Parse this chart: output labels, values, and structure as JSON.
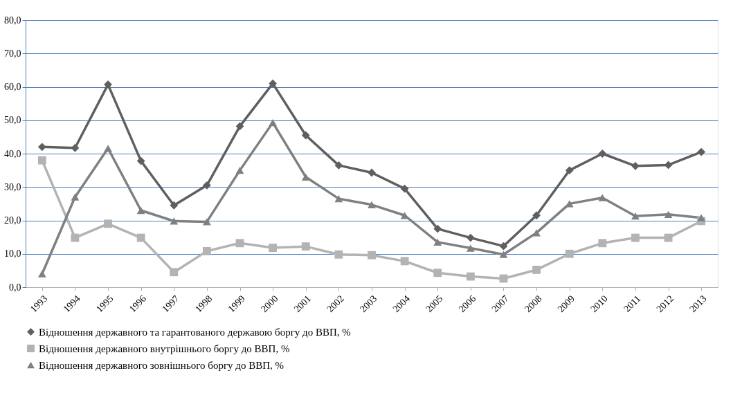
{
  "chart_data": {
    "type": "line",
    "categories": [
      "1993",
      "1994",
      "1995",
      "1996",
      "1997",
      "1998",
      "1999",
      "2000",
      "2001",
      "2002",
      "2003",
      "2004",
      "2005",
      "2006",
      "2007",
      "2008",
      "2009",
      "2010",
      "2011",
      "2012",
      "2013"
    ],
    "series": [
      {
        "name": "Відношення державного та гарантованого державою боргу до ВВП, %",
        "color": "#5f5f5f",
        "marker": "diamond",
        "values": [
          42,
          41.7,
          60.7,
          37.8,
          24.5,
          30.5,
          48.2,
          61,
          45.5,
          36.5,
          34.3,
          29.5,
          17.5,
          14.8,
          12.3,
          21.5,
          35,
          40,
          36.3,
          36.6,
          40.5
        ]
      },
      {
        "name": "Відношення державного внутрішнього боргу до ВВП, %",
        "color": "#b3b3b3",
        "marker": "square",
        "values": [
          38,
          14.8,
          19,
          14.8,
          4.5,
          10.8,
          13.2,
          11.8,
          12.2,
          9.8,
          9.6,
          7.8,
          4.3,
          3.2,
          2.6,
          5.2,
          10,
          13.2,
          14.8,
          14.8,
          19.8
        ]
      },
      {
        "name": "Відношення державного зовнішнього боргу до ВВП, %",
        "color": "#808080",
        "marker": "triangle",
        "values": [
          4,
          27,
          41.6,
          23,
          19.8,
          19.6,
          35,
          49.3,
          33,
          26.5,
          24.7,
          21.5,
          13.5,
          11.7,
          9.8,
          16.3,
          25,
          26.8,
          21.3,
          21.8,
          20.8
        ]
      }
    ],
    "ylim": [
      0,
      80
    ],
    "yticks": [
      {
        "value": 0,
        "label": "0,0"
      },
      {
        "value": 10,
        "label": "10,0"
      },
      {
        "value": 20,
        "label": "20,0"
      },
      {
        "value": 30,
        "label": "30,0"
      },
      {
        "value": 40,
        "label": "40,0"
      },
      {
        "value": 50,
        "label": "50,0"
      },
      {
        "value": 60,
        "label": "60,0"
      },
      {
        "value": 70,
        "label": "70,0"
      },
      {
        "value": 80,
        "label": "80,0"
      }
    ],
    "grid": "y",
    "legend": "bottom",
    "line_style": "solid"
  }
}
